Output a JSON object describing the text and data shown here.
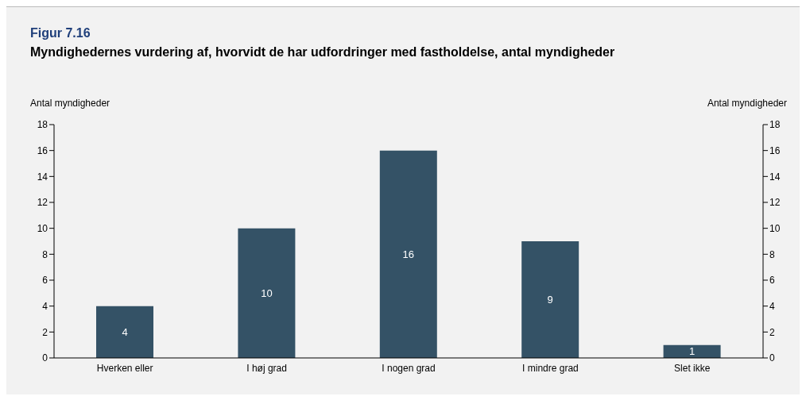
{
  "chart_data": {
    "type": "bar",
    "title": "Figur 7.16",
    "subtitle": "Myndighedernes vurdering af, hvorvidt de har udfordringer med fastholdelse, antal myndigheder",
    "ylabel": "Antal myndigheder",
    "y2label": "Antal myndigheder",
    "categories": [
      "Hverken eller",
      "I høj grad",
      "I nogen grad",
      "I mindre grad",
      "Slet ikke"
    ],
    "values": [
      4,
      10,
      16,
      9,
      1
    ],
    "color": "#345266",
    "ylim": [
      0,
      18
    ],
    "yticks": [
      0,
      2,
      4,
      6,
      8,
      10,
      12,
      14,
      16,
      18
    ],
    "y2lim": [
      0,
      18
    ],
    "y2ticks": [
      0,
      2,
      4,
      6,
      8,
      10,
      12,
      14,
      16,
      18
    ],
    "data_labels": true,
    "grid": false,
    "legend": false
  }
}
